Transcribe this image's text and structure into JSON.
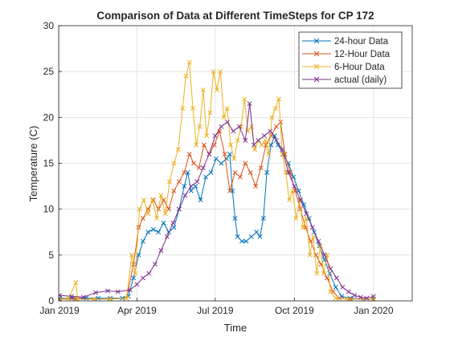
{
  "chart_data": {
    "type": "line",
    "title": "Comparison of Data at Different TimeSteps for CP 172",
    "xlabel": "Time",
    "ylabel": "Temperature (C)",
    "xlim": [
      "2018-12-31",
      "2020-02-15"
    ],
    "ylim": [
      0,
      30
    ],
    "yticks": [
      0,
      5,
      10,
      15,
      20,
      25,
      30
    ],
    "xticks": [
      {
        "date": "2019-01-01",
        "label": "Jan 2019"
      },
      {
        "date": "2019-04-01",
        "label": "Apr 2019"
      },
      {
        "date": "2019-07-01",
        "label": "Jul 2019"
      },
      {
        "date": "2019-10-01",
        "label": "Oct 2019"
      },
      {
        "date": "2020-01-01",
        "label": "Jan 2020"
      }
    ],
    "grid": true,
    "marker": "x",
    "legend_position": "top-right",
    "series": [
      {
        "name": "24-hour Data",
        "color": "#0072BD",
        "points": [
          [
            "2019-01-01",
            0.3
          ],
          [
            "2019-01-15",
            0.3
          ],
          [
            "2019-02-01",
            0.3
          ],
          [
            "2019-02-15",
            0.3
          ],
          [
            "2019-03-01",
            0.3
          ],
          [
            "2019-03-15",
            0.3
          ],
          [
            "2019-03-22",
            0.5
          ],
          [
            "2019-03-28",
            2.5
          ],
          [
            "2019-04-03",
            5
          ],
          [
            "2019-04-08",
            6.5
          ],
          [
            "2019-04-14",
            7.5
          ],
          [
            "2019-04-20",
            7.8
          ],
          [
            "2019-04-26",
            7.5
          ],
          [
            "2019-05-02",
            8.5
          ],
          [
            "2019-05-08",
            7.5
          ],
          [
            "2019-05-14",
            8
          ],
          [
            "2019-05-20",
            10
          ],
          [
            "2019-05-26",
            12.5
          ],
          [
            "2019-05-30",
            14
          ],
          [
            "2019-06-03",
            12
          ],
          [
            "2019-06-08",
            12.5
          ],
          [
            "2019-06-14",
            11
          ],
          [
            "2019-06-20",
            13.5
          ],
          [
            "2019-06-26",
            14
          ],
          [
            "2019-07-02",
            15.5
          ],
          [
            "2019-07-08",
            15
          ],
          [
            "2019-07-14",
            15.5
          ],
          [
            "2019-07-18",
            16
          ],
          [
            "2019-07-21",
            12
          ],
          [
            "2019-07-24",
            9
          ],
          [
            "2019-07-27",
            7
          ],
          [
            "2019-08-01",
            6.5
          ],
          [
            "2019-08-06",
            6.5
          ],
          [
            "2019-08-12",
            7
          ],
          [
            "2019-08-18",
            7.5
          ],
          [
            "2019-08-22",
            7
          ],
          [
            "2019-08-26",
            9
          ],
          [
            "2019-08-30",
            14
          ],
          [
            "2019-09-04",
            17
          ],
          [
            "2019-09-08",
            18
          ],
          [
            "2019-09-12",
            17
          ],
          [
            "2019-09-18",
            16
          ],
          [
            "2019-09-24",
            15
          ],
          [
            "2019-09-30",
            13.5
          ],
          [
            "2019-10-06",
            12
          ],
          [
            "2019-10-12",
            10.5
          ],
          [
            "2019-10-18",
            9
          ],
          [
            "2019-10-24",
            7.5
          ],
          [
            "2019-10-30",
            6
          ],
          [
            "2019-11-05",
            4.5
          ],
          [
            "2019-11-11",
            3
          ],
          [
            "2019-11-18",
            1.5
          ],
          [
            "2019-11-25",
            0.5
          ],
          [
            "2019-12-05",
            0.3
          ],
          [
            "2019-12-20",
            0.2
          ],
          [
            "2020-01-01",
            0.2
          ]
        ]
      },
      {
        "name": "12-Hour Data",
        "color": "#D95319",
        "points": [
          [
            "2019-01-01",
            0.2
          ],
          [
            "2019-01-20",
            0.2
          ],
          [
            "2019-02-10",
            0.2
          ],
          [
            "2019-03-01",
            0.2
          ],
          [
            "2019-03-20",
            0.3
          ],
          [
            "2019-03-28",
            4
          ],
          [
            "2019-04-03",
            8
          ],
          [
            "2019-04-08",
            9
          ],
          [
            "2019-04-14",
            10
          ],
          [
            "2019-04-20",
            11
          ],
          [
            "2019-04-26",
            10
          ],
          [
            "2019-05-02",
            11
          ],
          [
            "2019-05-08",
            10
          ],
          [
            "2019-05-14",
            12
          ],
          [
            "2019-05-20",
            13
          ],
          [
            "2019-05-26",
            14
          ],
          [
            "2019-06-01",
            16
          ],
          [
            "2019-06-06",
            15
          ],
          [
            "2019-06-12",
            14.5
          ],
          [
            "2019-06-18",
            17
          ],
          [
            "2019-06-24",
            16
          ],
          [
            "2019-06-30",
            17
          ],
          [
            "2019-07-06",
            18.5
          ],
          [
            "2019-07-12",
            16
          ],
          [
            "2019-07-18",
            12
          ],
          [
            "2019-07-24",
            14
          ],
          [
            "2019-07-30",
            13.5
          ],
          [
            "2019-08-05",
            15
          ],
          [
            "2019-08-11",
            14
          ],
          [
            "2019-08-17",
            12.5
          ],
          [
            "2019-08-23",
            14.5
          ],
          [
            "2019-08-29",
            17
          ],
          [
            "2019-09-04",
            18
          ],
          [
            "2019-09-10",
            19
          ],
          [
            "2019-09-15",
            19.5
          ],
          [
            "2019-09-20",
            16
          ],
          [
            "2019-09-26",
            14
          ],
          [
            "2019-10-02",
            12
          ],
          [
            "2019-10-08",
            10
          ],
          [
            "2019-10-14",
            8
          ],
          [
            "2019-10-20",
            6.5
          ],
          [
            "2019-10-26",
            5
          ],
          [
            "2019-11-01",
            4
          ],
          [
            "2019-11-08",
            2.5
          ],
          [
            "2019-11-15",
            1
          ],
          [
            "2019-11-22",
            0.3
          ],
          [
            "2019-12-05",
            0.2
          ],
          [
            "2020-01-01",
            0.2
          ]
        ]
      },
      {
        "name": "6-Hour Data",
        "color": "#EDB120",
        "points": [
          [
            "2019-01-01",
            0.2
          ],
          [
            "2019-01-12",
            0.3
          ],
          [
            "2019-01-20",
            2
          ],
          [
            "2019-01-22",
            0.2
          ],
          [
            "2019-02-10",
            0.2
          ],
          [
            "2019-03-01",
            0.2
          ],
          [
            "2019-03-20",
            0.3
          ],
          [
            "2019-03-26",
            5
          ],
          [
            "2019-03-30",
            3
          ],
          [
            "2019-04-04",
            10
          ],
          [
            "2019-04-09",
            11
          ],
          [
            "2019-04-14",
            9.5
          ],
          [
            "2019-04-19",
            11
          ],
          [
            "2019-04-24",
            9
          ],
          [
            "2019-04-29",
            11.5
          ],
          [
            "2019-05-04",
            9.5
          ],
          [
            "2019-05-09",
            13
          ],
          [
            "2019-05-14",
            15
          ],
          [
            "2019-05-19",
            16.5
          ],
          [
            "2019-05-24",
            21
          ],
          [
            "2019-05-28",
            24.5
          ],
          [
            "2019-06-01",
            26
          ],
          [
            "2019-06-05",
            21
          ],
          [
            "2019-06-09",
            17
          ],
          [
            "2019-06-13",
            19
          ],
          [
            "2019-06-17",
            23
          ],
          [
            "2019-06-21",
            18
          ],
          [
            "2019-06-25",
            20.5
          ],
          [
            "2019-06-29",
            25
          ],
          [
            "2019-07-03",
            23
          ],
          [
            "2019-07-07",
            25
          ],
          [
            "2019-07-11",
            20
          ],
          [
            "2019-07-15",
            21
          ],
          [
            "2019-07-19",
            17
          ],
          [
            "2019-07-23",
            15.5
          ],
          [
            "2019-07-27",
            17.5
          ],
          [
            "2019-07-31",
            19
          ],
          [
            "2019-08-04",
            22
          ],
          [
            "2019-08-08",
            18.5
          ],
          [
            "2019-08-12",
            19
          ],
          [
            "2019-08-16",
            16.5
          ],
          [
            "2019-08-20",
            17.5
          ],
          [
            "2019-08-24",
            17
          ],
          [
            "2019-08-28",
            17.5
          ],
          [
            "2019-09-01",
            16
          ],
          [
            "2019-09-05",
            20
          ],
          [
            "2019-09-09",
            21
          ],
          [
            "2019-09-13",
            22
          ],
          [
            "2019-09-17",
            16
          ],
          [
            "2019-09-21",
            14
          ],
          [
            "2019-09-25",
            11
          ],
          [
            "2019-09-29",
            12
          ],
          [
            "2019-10-03",
            9
          ],
          [
            "2019-10-07",
            11
          ],
          [
            "2019-10-11",
            8
          ],
          [
            "2019-10-15",
            9
          ],
          [
            "2019-10-19",
            5
          ],
          [
            "2019-10-23",
            7
          ],
          [
            "2019-10-27",
            3
          ],
          [
            "2019-10-31",
            6
          ],
          [
            "2019-11-04",
            3
          ],
          [
            "2019-11-08",
            5
          ],
          [
            "2019-11-12",
            1
          ],
          [
            "2019-11-18",
            0.3
          ],
          [
            "2019-12-01",
            0.2
          ],
          [
            "2019-12-20",
            0.2
          ],
          [
            "2020-01-01",
            0.2
          ]
        ]
      },
      {
        "name": "actual (daily)",
        "color": "#7E2F8E",
        "points": [
          [
            "2019-01-01",
            0.6
          ],
          [
            "2019-01-15",
            0.5
          ],
          [
            "2019-01-29",
            0.4
          ],
          [
            "2019-02-12",
            0.9
          ],
          [
            "2019-02-26",
            1.1
          ],
          [
            "2019-03-10",
            1
          ],
          [
            "2019-03-24",
            1.2
          ],
          [
            "2019-04-01",
            1.8
          ],
          [
            "2019-04-08",
            2.5
          ],
          [
            "2019-04-15",
            3
          ],
          [
            "2019-04-22",
            4
          ],
          [
            "2019-04-29",
            5.5
          ],
          [
            "2019-05-06",
            7
          ],
          [
            "2019-05-13",
            8.5
          ],
          [
            "2019-05-20",
            10
          ],
          [
            "2019-05-27",
            11.5
          ],
          [
            "2019-06-03",
            12.5
          ],
          [
            "2019-06-10",
            13
          ],
          [
            "2019-06-17",
            14.5
          ],
          [
            "2019-06-24",
            16
          ],
          [
            "2019-07-01",
            18
          ],
          [
            "2019-07-08",
            19
          ],
          [
            "2019-07-15",
            19.5
          ],
          [
            "2019-07-22",
            18.5
          ],
          [
            "2019-07-29",
            19
          ],
          [
            "2019-08-05",
            17.5
          ],
          [
            "2019-08-10",
            21.5
          ],
          [
            "2019-08-15",
            17
          ],
          [
            "2019-08-20",
            17.5
          ],
          [
            "2019-08-27",
            18
          ],
          [
            "2019-09-03",
            18.5
          ],
          [
            "2019-09-10",
            17.5
          ],
          [
            "2019-09-17",
            16.5
          ],
          [
            "2019-09-24",
            14
          ],
          [
            "2019-10-01",
            12.5
          ],
          [
            "2019-10-08",
            11
          ],
          [
            "2019-10-15",
            9.5
          ],
          [
            "2019-10-22",
            8
          ],
          [
            "2019-10-29",
            6.5
          ],
          [
            "2019-11-05",
            5
          ],
          [
            "2019-11-12",
            3.5
          ],
          [
            "2019-11-19",
            2.5
          ],
          [
            "2019-11-26",
            1.5
          ],
          [
            "2019-12-03",
            1
          ],
          [
            "2019-12-10",
            0.6
          ],
          [
            "2019-12-17",
            0.4
          ],
          [
            "2019-12-24",
            0.3
          ],
          [
            "2020-01-01",
            0.5
          ]
        ]
      }
    ]
  }
}
